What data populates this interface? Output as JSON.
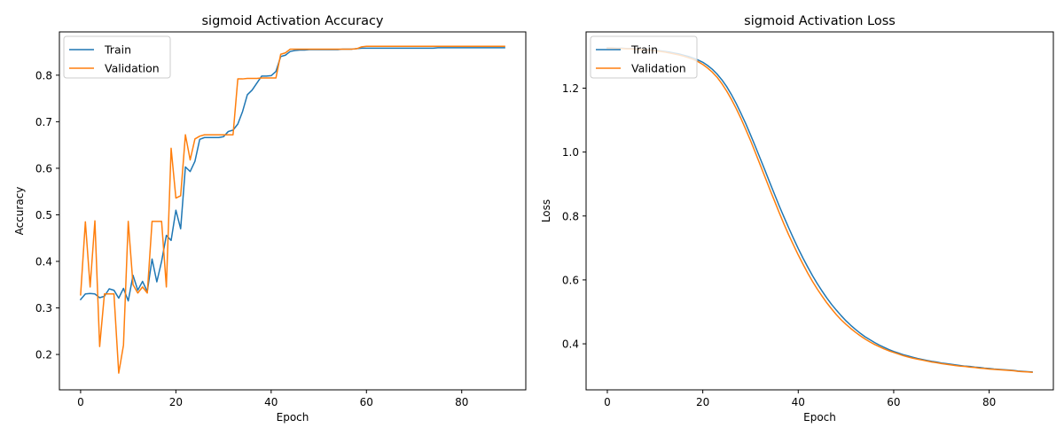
{
  "colors": {
    "train": "#1f77b4",
    "validation": "#ff7f0e"
  },
  "chart_data": [
    {
      "type": "line",
      "title": "sigmoid Activation Accuracy",
      "xlabel": "Epoch",
      "ylabel": "Accuracy",
      "xlim": [
        -4.45,
        93.45
      ],
      "ylim": [
        0.124,
        0.893
      ],
      "xticks": [
        0,
        20,
        40,
        60,
        80
      ],
      "yticks": [
        0.2,
        0.3,
        0.4,
        0.5,
        0.6,
        0.7,
        0.8
      ],
      "xtick_labels": [
        "0",
        "20",
        "40",
        "60",
        "80"
      ],
      "ytick_labels": [
        "0.2",
        "0.3",
        "0.4",
        "0.5",
        "0.6",
        "0.7",
        "0.8"
      ],
      "legend_position": "upper left",
      "legend": [
        "Train",
        "Validation"
      ],
      "series": [
        {
          "name": "Train",
          "color": "#1f77b4",
          "x": [
            0,
            1,
            2,
            3,
            4,
            5,
            6,
            7,
            8,
            9,
            10,
            11,
            12,
            13,
            14,
            15,
            16,
            17,
            18,
            19,
            20,
            21,
            22,
            23,
            24,
            25,
            26,
            27,
            28,
            29,
            30,
            31,
            32,
            33,
            34,
            35,
            36,
            37,
            38,
            39,
            40,
            41,
            42,
            43,
            44,
            45,
            46,
            47,
            48,
            49,
            50,
            51,
            52,
            53,
            54,
            55,
            56,
            57,
            58,
            59,
            60,
            61,
            62,
            63,
            64,
            65,
            66,
            67,
            68,
            69,
            70,
            71,
            72,
            73,
            74,
            75,
            76,
            77,
            78,
            79,
            80,
            81,
            82,
            83,
            84,
            85,
            86,
            87,
            88,
            89
          ],
          "y": [
            0.318,
            0.33,
            0.331,
            0.33,
            0.322,
            0.325,
            0.341,
            0.338,
            0.321,
            0.342,
            0.315,
            0.37,
            0.338,
            0.357,
            0.335,
            0.405,
            0.356,
            0.4,
            0.456,
            0.445,
            0.51,
            0.47,
            0.603,
            0.593,
            0.615,
            0.662,
            0.666,
            0.666,
            0.666,
            0.666,
            0.668,
            0.679,
            0.682,
            0.695,
            0.722,
            0.758,
            0.768,
            0.783,
            0.798,
            0.798,
            0.799,
            0.808,
            0.84,
            0.843,
            0.851,
            0.853,
            0.854,
            0.854,
            0.855,
            0.855,
            0.855,
            0.855,
            0.855,
            0.855,
            0.855,
            0.856,
            0.856,
            0.856,
            0.857,
            0.858,
            0.858,
            0.858,
            0.858,
            0.858,
            0.858,
            0.858,
            0.858,
            0.858,
            0.858,
            0.858,
            0.858,
            0.858,
            0.858,
            0.858,
            0.858,
            0.859,
            0.859,
            0.859,
            0.859,
            0.859,
            0.859,
            0.859,
            0.859,
            0.859,
            0.859,
            0.859,
            0.859,
            0.859,
            0.859,
            0.859
          ]
        },
        {
          "name": "Validation",
          "color": "#ff7f0e",
          "x": [
            0,
            1,
            2,
            3,
            4,
            5,
            6,
            7,
            8,
            9,
            10,
            11,
            12,
            13,
            14,
            15,
            16,
            17,
            18,
            19,
            20,
            21,
            22,
            23,
            24,
            25,
            26,
            27,
            28,
            29,
            30,
            31,
            32,
            33,
            34,
            35,
            36,
            37,
            38,
            39,
            40,
            41,
            42,
            43,
            44,
            45,
            46,
            47,
            48,
            49,
            50,
            51,
            52,
            53,
            54,
            55,
            56,
            57,
            58,
            59,
            60,
            61,
            62,
            63,
            64,
            65,
            66,
            67,
            68,
            69,
            70,
            71,
            72,
            73,
            74,
            75,
            76,
            77,
            78,
            79,
            80,
            81,
            82,
            83,
            84,
            85,
            86,
            87,
            88,
            89
          ],
          "y": [
            0.328,
            0.485,
            0.345,
            0.487,
            0.217,
            0.33,
            0.33,
            0.33,
            0.16,
            0.22,
            0.486,
            0.35,
            0.332,
            0.345,
            0.332,
            0.486,
            0.486,
            0.486,
            0.345,
            0.643,
            0.536,
            0.541,
            0.672,
            0.618,
            0.663,
            0.669,
            0.672,
            0.672,
            0.672,
            0.672,
            0.672,
            0.672,
            0.672,
            0.792,
            0.792,
            0.793,
            0.793,
            0.793,
            0.794,
            0.794,
            0.794,
            0.794,
            0.845,
            0.848,
            0.856,
            0.856,
            0.856,
            0.856,
            0.856,
            0.856,
            0.856,
            0.856,
            0.856,
            0.856,
            0.856,
            0.856,
            0.856,
            0.856,
            0.857,
            0.861,
            0.862,
            0.862,
            0.862,
            0.862,
            0.862,
            0.862,
            0.862,
            0.862,
            0.862,
            0.862,
            0.862,
            0.862,
            0.862,
            0.862,
            0.862,
            0.862,
            0.862,
            0.862,
            0.862,
            0.862,
            0.862,
            0.862,
            0.862,
            0.862,
            0.862,
            0.862,
            0.862,
            0.862,
            0.862,
            0.862
          ]
        }
      ]
    },
    {
      "type": "line",
      "title": "sigmoid Activation Loss",
      "xlabel": "Epoch",
      "ylabel": "Loss",
      "xlim": [
        -4.45,
        93.45
      ],
      "ylim": [
        0.256,
        1.376
      ],
      "xticks": [
        0,
        20,
        40,
        60,
        80
      ],
      "yticks": [
        0.4,
        0.6,
        0.8,
        1.0,
        1.2
      ],
      "xtick_labels": [
        "0",
        "20",
        "40",
        "60",
        "80"
      ],
      "ytick_labels": [
        "0.4",
        "0.6",
        "0.8",
        "1.0",
        "1.2"
      ],
      "legend_position": "upper left",
      "legend": [
        "Train",
        "Validation"
      ],
      "series": [
        {
          "name": "Train",
          "color": "#1f77b4",
          "x": [
            0,
            1,
            2,
            3,
            4,
            5,
            6,
            7,
            8,
            9,
            10,
            11,
            12,
            13,
            14,
            15,
            16,
            17,
            18,
            19,
            20,
            21,
            22,
            23,
            24,
            25,
            26,
            27,
            28,
            29,
            30,
            31,
            32,
            33,
            34,
            35,
            36,
            37,
            38,
            39,
            40,
            41,
            42,
            43,
            44,
            45,
            46,
            47,
            48,
            49,
            50,
            51,
            52,
            53,
            54,
            55,
            56,
            57,
            58,
            59,
            60,
            61,
            62,
            63,
            64,
            65,
            66,
            67,
            68,
            69,
            70,
            71,
            72,
            73,
            74,
            75,
            76,
            77,
            78,
            79,
            80,
            81,
            82,
            83,
            84,
            85,
            86,
            87,
            88,
            89
          ],
          "y": [
            1.326,
            1.326,
            1.325,
            1.325,
            1.324,
            1.324,
            1.323,
            1.322,
            1.321,
            1.32,
            1.319,
            1.317,
            1.315,
            1.313,
            1.31,
            1.307,
            1.303,
            1.299,
            1.294,
            1.288,
            1.281,
            1.271,
            1.259,
            1.244,
            1.226,
            1.205,
            1.18,
            1.152,
            1.121,
            1.089,
            1.054,
            1.018,
            0.981,
            0.944,
            0.906,
            0.869,
            0.832,
            0.797,
            0.763,
            0.73,
            0.698,
            0.668,
            0.64,
            0.613,
            0.588,
            0.565,
            0.543,
            0.523,
            0.505,
            0.488,
            0.472,
            0.458,
            0.445,
            0.433,
            0.422,
            0.413,
            0.404,
            0.396,
            0.389,
            0.382,
            0.376,
            0.371,
            0.366,
            0.362,
            0.358,
            0.354,
            0.351,
            0.348,
            0.345,
            0.343,
            0.34,
            0.338,
            0.336,
            0.334,
            0.332,
            0.33,
            0.329,
            0.327,
            0.326,
            0.324,
            0.323,
            0.321,
            0.32,
            0.319,
            0.318,
            0.317,
            0.315,
            0.314,
            0.313,
            0.312
          ]
        },
        {
          "name": "Validation",
          "color": "#ff7f0e",
          "x": [
            0,
            1,
            2,
            3,
            4,
            5,
            6,
            7,
            8,
            9,
            10,
            11,
            12,
            13,
            14,
            15,
            16,
            17,
            18,
            19,
            20,
            21,
            22,
            23,
            24,
            25,
            26,
            27,
            28,
            29,
            30,
            31,
            32,
            33,
            34,
            35,
            36,
            37,
            38,
            39,
            40,
            41,
            42,
            43,
            44,
            45,
            46,
            47,
            48,
            49,
            50,
            51,
            52,
            53,
            54,
            55,
            56,
            57,
            58,
            59,
            60,
            61,
            62,
            63,
            64,
            65,
            66,
            67,
            68,
            69,
            70,
            71,
            72,
            73,
            74,
            75,
            76,
            77,
            78,
            79,
            80,
            81,
            82,
            83,
            84,
            85,
            86,
            87,
            88,
            89
          ],
          "y": [
            1.325,
            1.325,
            1.324,
            1.324,
            1.323,
            1.323,
            1.322,
            1.321,
            1.32,
            1.319,
            1.317,
            1.315,
            1.313,
            1.31,
            1.307,
            1.304,
            1.3,
            1.295,
            1.29,
            1.283,
            1.274,
            1.263,
            1.25,
            1.234,
            1.214,
            1.191,
            1.165,
            1.136,
            1.105,
            1.071,
            1.036,
            0.999,
            0.961,
            0.923,
            0.885,
            0.848,
            0.811,
            0.775,
            0.741,
            0.709,
            0.678,
            0.649,
            0.621,
            0.595,
            0.571,
            0.549,
            0.528,
            0.509,
            0.491,
            0.475,
            0.461,
            0.448,
            0.436,
            0.425,
            0.415,
            0.406,
            0.398,
            0.391,
            0.384,
            0.378,
            0.373,
            0.368,
            0.363,
            0.359,
            0.355,
            0.352,
            0.349,
            0.346,
            0.343,
            0.341,
            0.338,
            0.336,
            0.334,
            0.332,
            0.33,
            0.329,
            0.327,
            0.326,
            0.324,
            0.323,
            0.321,
            0.32,
            0.319,
            0.318,
            0.317,
            0.316,
            0.314,
            0.313,
            0.312,
            0.311
          ]
        }
      ]
    }
  ]
}
